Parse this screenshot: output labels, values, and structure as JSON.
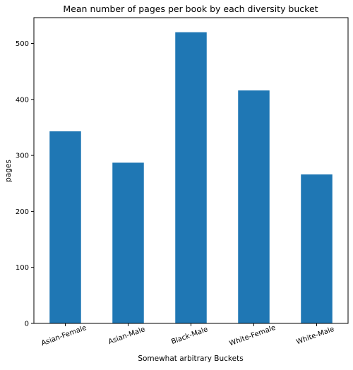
{
  "chart_data": {
    "type": "bar",
    "title": "Mean number of pages per book by each diversity bucket",
    "xlabel": "Somewhat arbitrary Buckets",
    "ylabel": "pages",
    "categories": [
      "Asian-Female",
      "Asian-Male",
      "Black-Male",
      "White-Female",
      "White-Male"
    ],
    "values": [
      343,
      287,
      520,
      416,
      266
    ],
    "ylim": [
      0,
      546
    ],
    "yticks": [
      0,
      100,
      200,
      300,
      400,
      500
    ],
    "grid": false,
    "legend": "none",
    "bar_color": "#1f77b4",
    "xtick_rotation": -20
  }
}
